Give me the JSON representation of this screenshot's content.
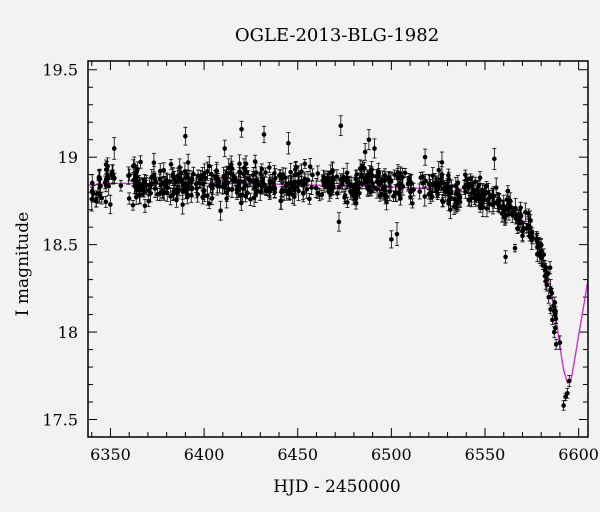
{
  "chart_data": {
    "type": "scatter",
    "title": "OGLE-2013-BLG-1982",
    "xlabel": "HJD - 2450000",
    "ylabel": "I magnitude",
    "xlim": [
      6338,
      6605
    ],
    "ylim": [
      19.55,
      17.4
    ],
    "y_inverted": true,
    "xticks": [
      6350,
      6400,
      6450,
      6500,
      6550,
      6600
    ],
    "yticks": [
      17.5,
      18,
      18.5,
      19,
      19.5
    ],
    "ytick_labels": [
      "17.5",
      "18",
      "18.5",
      "19",
      "19.5"
    ],
    "x_minor_step": 10,
    "y_minor_step": 0.1,
    "grid": false,
    "colors": {
      "points": "#000000",
      "model": "#cc33cc",
      "background": "#f2f2f2"
    },
    "series": [
      {
        "type": "model_curve",
        "x": [
          6338,
          6350,
          6380,
          6420,
          6460,
          6500,
          6520,
          6540,
          6550,
          6560,
          6570,
          6575,
          6580,
          6585,
          6588,
          6590,
          6592,
          6594,
          6596,
          6598,
          6600,
          6603,
          6605
        ],
        "y": [
          18.84,
          18.85,
          18.85,
          18.85,
          18.84,
          18.83,
          18.82,
          18.8,
          18.77,
          18.72,
          18.64,
          18.57,
          18.46,
          18.25,
          18.07,
          17.92,
          17.78,
          17.71,
          17.73,
          17.85,
          17.98,
          18.17,
          18.3
        ]
      },
      {
        "type": "photometry",
        "bright_x": [
          6561,
          6566,
          6570,
          6574,
          6578,
          6580,
          6581,
          6582,
          6583,
          6584,
          6585,
          6586,
          6587,
          6588,
          6590,
          6592,
          6593,
          6594,
          6595
        ],
        "bright_y": [
          18.43,
          18.48,
          18.55,
          18.6,
          18.53,
          18.46,
          18.38,
          18.32,
          18.27,
          18.2,
          18.13,
          18.07,
          18.0,
          17.93,
          17.94,
          17.58,
          17.63,
          17.65,
          17.72
        ],
        "outlier_x": [
          6340,
          6352,
          6390,
          6411,
          6420,
          6432,
          6445,
          6472,
          6473,
          6486,
          6488,
          6491,
          6500,
          6503,
          6518,
          6527,
          6555,
          6560
        ],
        "outlier_y": [
          18.76,
          19.05,
          19.12,
          19.05,
          19.16,
          19.13,
          19.08,
          18.63,
          19.18,
          19.03,
          19.1,
          19.05,
          18.53,
          18.56,
          19.0,
          18.97,
          18.99,
          18.72
        ]
      }
    ]
  }
}
